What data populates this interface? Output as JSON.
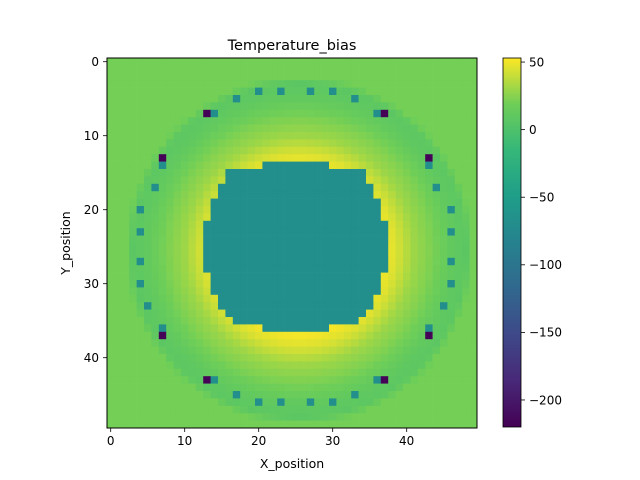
{
  "chart_data": {
    "type": "heatmap",
    "title": "Temperature_bias",
    "xlabel": "X_position",
    "ylabel": "Y_position",
    "grid": false,
    "x_ticks": [
      "0",
      "10",
      "20",
      "30",
      "40"
    ],
    "y_ticks": [
      "0",
      "10",
      "20",
      "30",
      "40"
    ],
    "xlim": [
      -0.5,
      49.5
    ],
    "ylim": [
      49.5,
      -0.5
    ],
    "colormap": "viridis",
    "colorbar": {
      "ticks": [
        "50",
        "0",
        "−50",
        "−100",
        "−150",
        "−200"
      ],
      "min": -220,
      "max": 53
    },
    "grid_size": 50,
    "center": [
      25.5,
      25.5
    ],
    "background_value": 20,
    "core_value": -68,
    "core_rows": {
      "14": [
        21,
        29
      ],
      "15": [
        16,
        34
      ],
      "16": [
        16,
        34
      ],
      "17": [
        15,
        35
      ],
      "18": [
        15,
        35
      ],
      "19": [
        14,
        36
      ],
      "20": [
        14,
        36
      ],
      "21": [
        14,
        36
      ],
      "22": [
        13,
        37
      ],
      "23": [
        13,
        37
      ],
      "24": [
        13,
        37
      ],
      "25": [
        13,
        37
      ],
      "26": [
        13,
        37
      ],
      "27": [
        13,
        37
      ],
      "28": [
        13,
        37
      ],
      "29": [
        14,
        36
      ],
      "30": [
        14,
        36
      ],
      "31": [
        14,
        36
      ],
      "32": [
        15,
        35
      ],
      "33": [
        15,
        35
      ],
      "34": [
        16,
        34
      ],
      "35": [
        17,
        33
      ],
      "36": [
        21,
        29
      ]
    },
    "ring_profile": [
      {
        "r": 11.0,
        "value": 53
      },
      {
        "r": 13.0,
        "value": 45
      },
      {
        "r": 15.5,
        "value": 30
      },
      {
        "r": 18.0,
        "value": 22
      },
      {
        "r": 20.5,
        "value": 12
      },
      {
        "r": 22.5,
        "value": 8
      },
      {
        "r": 23.5,
        "value": 20
      }
    ],
    "sensor_points_value": -68,
    "sensor_points": [
      [
        20,
        4
      ],
      [
        23,
        4
      ],
      [
        27,
        4
      ],
      [
        30,
        4
      ],
      [
        17,
        5
      ],
      [
        33,
        5
      ],
      [
        14,
        7
      ],
      [
        36,
        7
      ],
      [
        7,
        13
      ],
      [
        43,
        13
      ],
      [
        43,
        14
      ],
      [
        7,
        14
      ],
      [
        6,
        17
      ],
      [
        44,
        17
      ],
      [
        4,
        20
      ],
      [
        46,
        20
      ],
      [
        4,
        23
      ],
      [
        46,
        23
      ],
      [
        4,
        27
      ],
      [
        46,
        27
      ],
      [
        4,
        30
      ],
      [
        46,
        30
      ],
      [
        5,
        33
      ],
      [
        45,
        33
      ],
      [
        7,
        36
      ],
      [
        43,
        36
      ],
      [
        14,
        43
      ],
      [
        36,
        43
      ],
      [
        17,
        45
      ],
      [
        33,
        45
      ],
      [
        20,
        46
      ],
      [
        23,
        46
      ],
      [
        27,
        46
      ],
      [
        30,
        46
      ]
    ],
    "cold_points_value": -218,
    "cold_points": [
      [
        13,
        7
      ],
      [
        37,
        7
      ],
      [
        7,
        13
      ],
      [
        43,
        13
      ],
      [
        7,
        37
      ],
      [
        43,
        37
      ],
      [
        13,
        43
      ],
      [
        37,
        43
      ]
    ]
  }
}
